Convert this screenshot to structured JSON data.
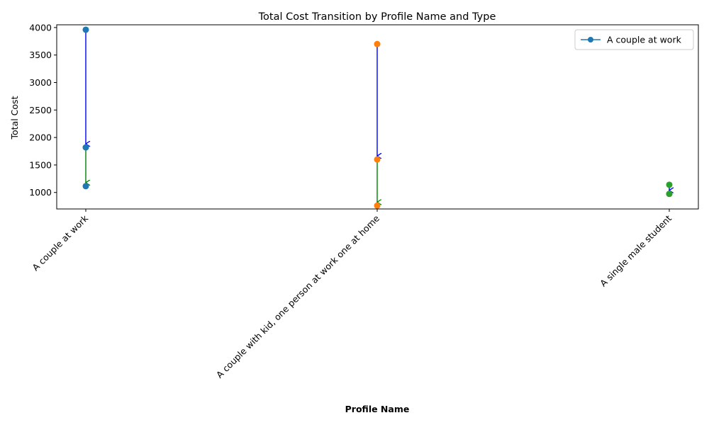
{
  "chart_data": {
    "type": "line",
    "title": "Total Cost Transition by Profile Name and Type",
    "xlabel": "Profile Name",
    "ylabel": "Total Cost",
    "categories": [
      "A couple at work",
      "A couple with kid, one person at work one at home",
      "A single male student"
    ],
    "ylim": [
      700,
      4050
    ],
    "yticks": [
      1000,
      1500,
      2000,
      2500,
      3000,
      3500,
      4000
    ],
    "grid": false,
    "legend": {
      "position": "top-right",
      "entries": [
        "A couple at work"
      ]
    },
    "series": [
      {
        "name": "A couple at work",
        "category": "A couple at work",
        "color": "#1f77b4",
        "values": [
          3960,
          1820,
          1115
        ]
      },
      {
        "name": "A couple with kid, one person at work one at home",
        "category": "A couple with kid, one person at work one at home",
        "color": "#ff7f0e",
        "values": [
          3700,
          1600,
          760
        ]
      },
      {
        "name": "A single male student",
        "category": "A single male student",
        "color": "#2ca02c",
        "values": [
          1140,
          975,
          975
        ]
      }
    ],
    "arrow_colors": [
      "#0000ff",
      "#008000"
    ]
  }
}
